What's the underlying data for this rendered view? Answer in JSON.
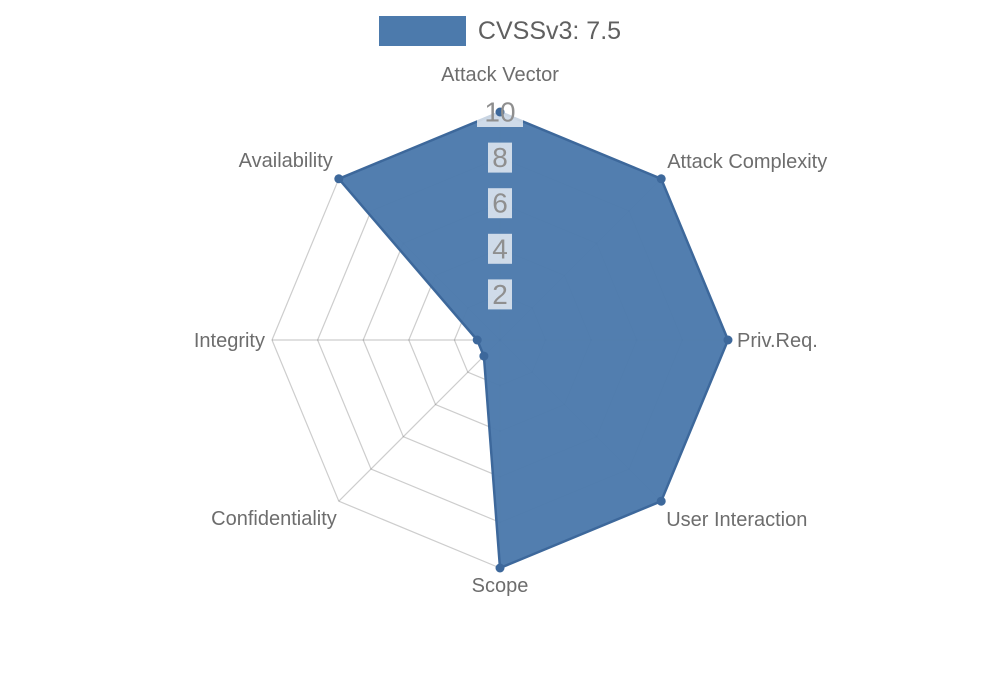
{
  "legend": {
    "label": "CVSSv3: 7.5",
    "swatch_color": "#4c7aac"
  },
  "chart_data": {
    "type": "radar",
    "title": "",
    "categories": [
      "Attack Vector",
      "Attack Complexity",
      "Priv.Req.",
      "User Interaction",
      "Scope",
      "Confidentiality",
      "Integrity",
      "Availability"
    ],
    "series": [
      {
        "name": "CVSSv3: 7.5",
        "values": [
          10,
          10,
          10,
          10,
          10,
          1,
          1,
          10
        ]
      }
    ],
    "scale": {
      "min": 0,
      "max": 10,
      "tick_step": 2,
      "ticks": [
        2,
        4,
        6,
        8,
        10
      ]
    },
    "grid": "polygon-web",
    "legend_position": "top",
    "colors": {
      "fill": "#4c7aac",
      "border": "#3d689b",
      "point": "#3d689b",
      "grid_line": "rgba(90,90,90,0.3)",
      "tick_text": "#8f8f8f",
      "tick_backdrop": "rgba(255,255,255,0.72)",
      "axis_label": "#6d6d6d",
      "legend_text": "#606060",
      "background": "#ffffff"
    }
  }
}
